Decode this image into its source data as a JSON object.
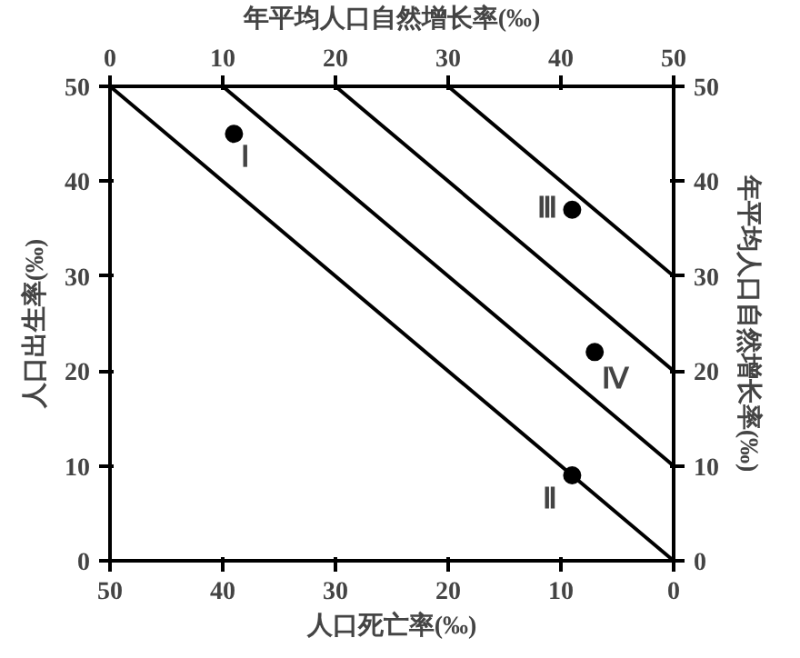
{
  "chart_data": {
    "type": "scatter",
    "xlabel": "人口死亡率(‰)",
    "ylabel": "人口出生率(‰)",
    "x2label": "年平均人口自然增长率(‰)",
    "y2label": "年平均人口自然增长率(‰)",
    "xlim": [
      50,
      0
    ],
    "xticks": [
      50,
      40,
      30,
      20,
      10,
      0
    ],
    "ylim": [
      0,
      50
    ],
    "yticks": [
      0,
      10,
      20,
      30,
      40,
      50
    ],
    "x2lim": [
      0,
      50
    ],
    "x2ticks": [
      0,
      10,
      20,
      30,
      40,
      50
    ],
    "y2lim": [
      0,
      50
    ],
    "y2ticks": [
      0,
      10,
      20,
      30,
      40,
      50
    ],
    "grid": false,
    "series": [
      {
        "color": "#000000",
        "marker": "circle",
        "x": [
          39,
          9,
          9,
          7
        ],
        "values": [
          45,
          9,
          37,
          22
        ]
      },
      {
        "type": "line",
        "color": "#000000",
        "x": [
          50,
          0
        ],
        "values": [
          50,
          0
        ]
      },
      {
        "type": "line",
        "color": "#000000",
        "x": [
          40,
          0
        ],
        "values": [
          50,
          10
        ]
      },
      {
        "type": "line",
        "color": "#000000",
        "x": [
          30,
          0
        ],
        "values": [
          50,
          20
        ]
      },
      {
        "type": "line",
        "color": "#000000",
        "x": [
          20,
          0
        ],
        "values": [
          50,
          30
        ]
      }
    ],
    "annotations": [
      {
        "text": "Ⅰ",
        "x": 39,
        "y": 45
      },
      {
        "text": "Ⅱ",
        "x": 9,
        "y": 9
      },
      {
        "text": "Ⅲ",
        "x": 9,
        "y": 37
      },
      {
        "text": "Ⅳ",
        "x": 7,
        "y": 22
      }
    ]
  }
}
